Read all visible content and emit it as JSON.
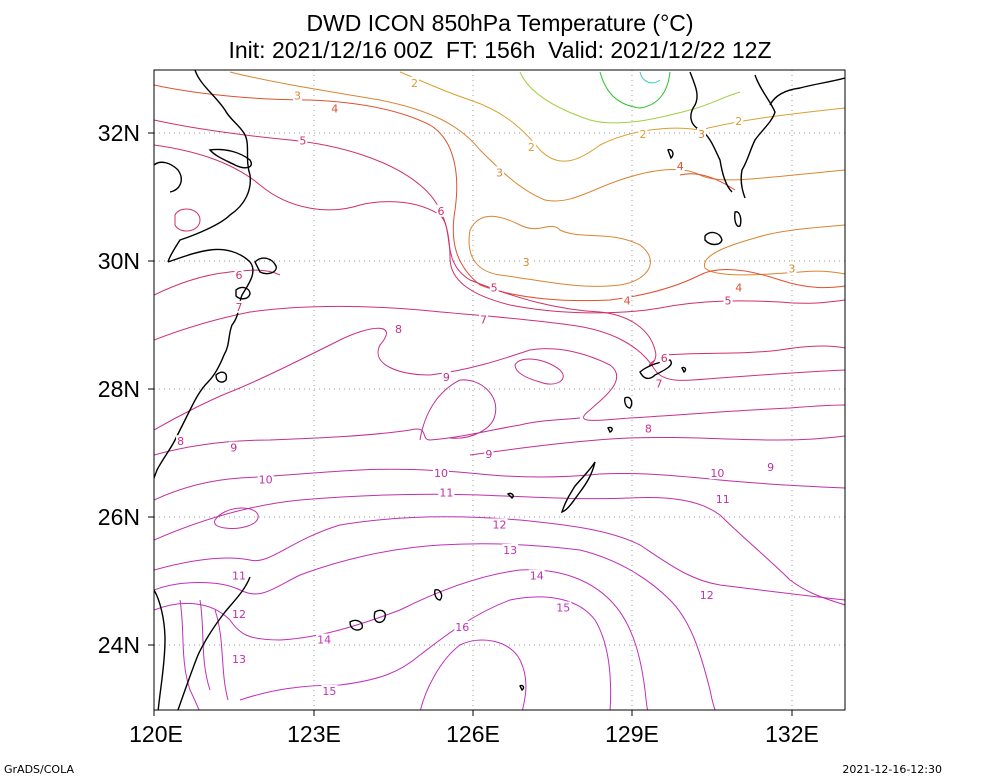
{
  "title_line1": "DWD ICON 850hPa Temperature (°C)",
  "title_line2": "Init: 2021/12/16 00Z  FT: 156h  Valid: 2021/12/22 12Z",
  "footer_left": "GrADS/COLA",
  "footer_right": "2021-12-16-12:30",
  "axes": {
    "lon_ticks": [
      "120E",
      "123E",
      "126E",
      "129E",
      "132E"
    ],
    "lat_ticks": [
      "32N",
      "30N",
      "28N",
      "26N",
      "24N"
    ],
    "lon_range": [
      120,
      133
    ],
    "lat_range": [
      23,
      33
    ]
  },
  "contour_colors": {
    "1": "#22c222",
    "2": "#d9a030",
    "3": "#d98530",
    "4": "#e05030",
    "5": "#d0306a",
    "6": "#d0306a",
    "7": "#d0307a",
    "8": "#c8308a",
    "9": "#c03095",
    "10": "#c030a0",
    "11": "#c030a8",
    "12": "#c030b0",
    "13": "#c030b8",
    "14": "#c030b8",
    "15": "#c030c0",
    "16": "#c030c0"
  },
  "contour_labels": [
    {
      "v": "2",
      "lon": 124.9,
      "lat": 32.8
    },
    {
      "v": "3",
      "lon": 122.7,
      "lat": 32.6
    },
    {
      "v": "4",
      "lon": 123.4,
      "lat": 32.4
    },
    {
      "v": "5",
      "lon": 122.8,
      "lat": 31.9
    },
    {
      "v": "2",
      "lon": 127.1,
      "lat": 31.8
    },
    {
      "v": "3",
      "lon": 126.5,
      "lat": 31.4
    },
    {
      "v": "2",
      "lon": 129.2,
      "lat": 32.0
    },
    {
      "v": "3",
      "lon": 130.3,
      "lat": 32.0
    },
    {
      "v": "2",
      "lon": 131.0,
      "lat": 32.2
    },
    {
      "v": "4",
      "lon": 129.9,
      "lat": 31.5
    },
    {
      "v": "6",
      "lon": 125.4,
      "lat": 30.8
    },
    {
      "v": "3",
      "lon": 127.0,
      "lat": 30.0
    },
    {
      "v": "5",
      "lon": 126.4,
      "lat": 29.6
    },
    {
      "v": "4",
      "lon": 128.9,
      "lat": 29.4
    },
    {
      "v": "4",
      "lon": 131.0,
      "lat": 29.6
    },
    {
      "v": "3",
      "lon": 132.0,
      "lat": 29.9
    },
    {
      "v": "5",
      "lon": 130.8,
      "lat": 29.4
    },
    {
      "v": "6",
      "lon": 121.6,
      "lat": 29.8
    },
    {
      "v": "7",
      "lon": 121.6,
      "lat": 29.3
    },
    {
      "v": "7",
      "lon": 126.2,
      "lat": 29.1
    },
    {
      "v": "8",
      "lon": 124.6,
      "lat": 28.95
    },
    {
      "v": "6",
      "lon": 129.6,
      "lat": 28.5
    },
    {
      "v": "7",
      "lon": 129.5,
      "lat": 28.1
    },
    {
      "v": "9",
      "lon": 125.5,
      "lat": 28.2
    },
    {
      "v": "8",
      "lon": 129.3,
      "lat": 27.4
    },
    {
      "v": "8",
      "lon": 120.5,
      "lat": 27.2
    },
    {
      "v": "9",
      "lon": 121.5,
      "lat": 27.1
    },
    {
      "v": "9",
      "lon": 126.3,
      "lat": 27.0
    },
    {
      "v": "9",
      "lon": 131.6,
      "lat": 26.8
    },
    {
      "v": "10",
      "lon": 122.1,
      "lat": 26.6
    },
    {
      "v": "10",
      "lon": 125.4,
      "lat": 26.7
    },
    {
      "v": "10",
      "lon": 130.6,
      "lat": 26.7
    },
    {
      "v": "11",
      "lon": 125.5,
      "lat": 26.4
    },
    {
      "v": "11",
      "lon": 130.7,
      "lat": 26.3
    },
    {
      "v": "12",
      "lon": 126.5,
      "lat": 25.9
    },
    {
      "v": "13",
      "lon": 126.7,
      "lat": 25.5
    },
    {
      "v": "14",
      "lon": 127.2,
      "lat": 25.1
    },
    {
      "v": "11",
      "lon": 121.6,
      "lat": 25.1
    },
    {
      "v": "12",
      "lon": 130.4,
      "lat": 24.8
    },
    {
      "v": "15",
      "lon": 127.7,
      "lat": 24.6
    },
    {
      "v": "12",
      "lon": 121.6,
      "lat": 24.5
    },
    {
      "v": "16",
      "lon": 125.8,
      "lat": 24.3
    },
    {
      "v": "14",
      "lon": 123.2,
      "lat": 24.1
    },
    {
      "v": "13",
      "lon": 121.6,
      "lat": 23.8
    },
    {
      "v": "15",
      "lon": 123.3,
      "lat": 23.3
    }
  ]
}
